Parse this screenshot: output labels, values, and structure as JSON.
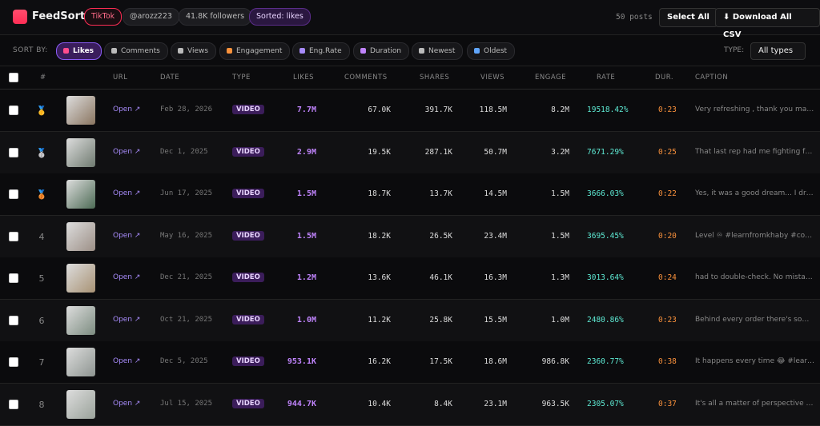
{
  "header": {
    "brand": "FeedSort",
    "platform": "TikTok",
    "handle": "@arozz223",
    "followers": "41.8K followers",
    "sorted": "Sorted: likes",
    "posts": "50 posts",
    "select_all": "Select All",
    "download": "⬇ Download All CSV"
  },
  "sortbar": {
    "label": "SORT BY:",
    "options": [
      "Likes",
      "Comments",
      "Views",
      "Engagement",
      "Eng.Rate",
      "Duration",
      "Newest",
      "Oldest"
    ],
    "type_label": "TYPE:",
    "type_value": "All types"
  },
  "table": {
    "headers": [
      "#",
      "URL",
      "DATE",
      "TYPE",
      "LIKES",
      "COMMENTS",
      "SHARES",
      "VIEWS",
      "ENGAGE",
      "RATE",
      "DUR.",
      "CAPTION"
    ],
    "rows": [
      [
        "🥇",
        "Open ↗",
        "Feb 28, 2026",
        "VIDEO",
        "7.7M",
        "67.0K",
        "391.7K",
        "118.5M",
        "8.2M",
        "19518.42%",
        "0:23",
        "Very refreshing , thank you man ..."
      ],
      [
        "🥈",
        "Open ↗",
        "Dec 1, 2025",
        "VIDEO",
        "2.9M",
        "19.5K",
        "287.1K",
        "50.7M",
        "3.2M",
        "7671.29%",
        "0:25",
        "That last rep had me fighting for ..."
      ],
      [
        "🥉",
        "Open ↗",
        "Jun 17, 2025",
        "VIDEO",
        "1.5M",
        "18.7K",
        "13.7K",
        "14.5M",
        "1.5M",
        "3666.03%",
        "0:22",
        "Yes, it was a good dream... I dribbl..."
      ],
      [
        4,
        "Open ↗",
        "May 16, 2025",
        "VIDEO",
        "1.5M",
        "18.2K",
        "26.5K",
        "23.4M",
        "1.5M",
        "3695.45%",
        "0:20",
        "Level ♾ #learnfromkhaby #com..."
      ],
      [
        5,
        "Open ↗",
        "Dec 21, 2025",
        "VIDEO",
        "1.2M",
        "13.6K",
        "46.1K",
        "16.3M",
        "1.3M",
        "3013.64%",
        "0:24",
        "had to double-check. No mistak..."
      ],
      [
        6,
        "Open ↗",
        "Oct 21, 2025",
        "VIDEO",
        "1.0M",
        "11.2K",
        "25.8K",
        "15.5M",
        "1.0M",
        "2480.86%",
        "0:23",
        "Behind every order there's some..."
      ],
      [
        7,
        "Open ↗",
        "Dec 5, 2025",
        "VIDEO",
        "953.1K",
        "16.2K",
        "17.5K",
        "18.6M",
        "986.8K",
        "2360.77%",
        "0:38",
        "It happens every time 😂 #learnfr..."
      ],
      [
        8,
        "Open ↗",
        "Jul 15, 2025",
        "VIDEO",
        "944.7K",
        "10.4K",
        "8.4K",
        "23.1M",
        "963.5K",
        "2305.07%",
        "0:37",
        "It's all a matter of perspective #le..."
      ]
    ]
  }
}
